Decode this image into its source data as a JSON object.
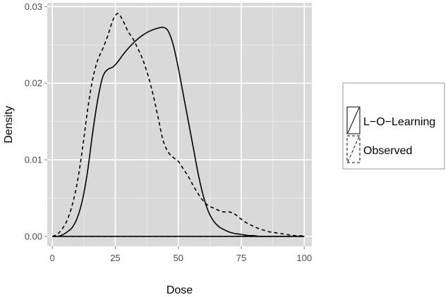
{
  "chart_data": {
    "type": "line",
    "xlabel": "Dose",
    "ylabel": "Density",
    "xlim": [
      -2,
      103
    ],
    "ylim": [
      -0.0013,
      0.0305
    ],
    "x_ticks": [
      0,
      25,
      50,
      75,
      100
    ],
    "x_tick_labels": [
      "0",
      "25",
      "50",
      "75",
      "100"
    ],
    "y_ticks": [
      0.0,
      0.01,
      0.02,
      0.03
    ],
    "y_tick_labels": [
      "0.00",
      "0.01",
      "0.02",
      "0.03"
    ],
    "grid": true,
    "legend_position": "right",
    "colors": {
      "panel_background": "#d9d9d9",
      "grid_major": "#ffffff",
      "grid_minor": "#ececec",
      "line": "#000000"
    },
    "series": [
      {
        "name": "L−O−Learning",
        "linestyle": "solid",
        "x": [
          0,
          2,
          4,
          6,
          8,
          10,
          12,
          14,
          16,
          18,
          20,
          22,
          24,
          26,
          28,
          30,
          32,
          34,
          36,
          38,
          40,
          42,
          44,
          46,
          48,
          50,
          52,
          54,
          56,
          58,
          60,
          62,
          64,
          66,
          68,
          70,
          72,
          74,
          76,
          78,
          80,
          82,
          84,
          86,
          88,
          90,
          92,
          94,
          96,
          98,
          100
        ],
        "y": [
          0.0,
          0.0,
          0.0002,
          0.0006,
          0.0012,
          0.0025,
          0.0048,
          0.0085,
          0.0135,
          0.0178,
          0.0208,
          0.0218,
          0.0221,
          0.0228,
          0.0237,
          0.0245,
          0.0252,
          0.0258,
          0.0263,
          0.0267,
          0.027,
          0.0272,
          0.0273,
          0.0268,
          0.025,
          0.022,
          0.0185,
          0.015,
          0.0115,
          0.008,
          0.0052,
          0.0032,
          0.002,
          0.0013,
          0.0009,
          0.0006,
          0.0004,
          0.0003,
          0.0002,
          0.0001,
          0.0001,
          0.0,
          0.0,
          0.0,
          0.0,
          0.0,
          0.0,
          0.0,
          0.0,
          0.0,
          0.0
        ]
      },
      {
        "name": "Observed",
        "linestyle": "dashed",
        "x": [
          0,
          2,
          4,
          6,
          8,
          10,
          12,
          14,
          16,
          18,
          20,
          22,
          24,
          26,
          28,
          30,
          32,
          34,
          36,
          38,
          40,
          42,
          44,
          46,
          48,
          50,
          52,
          54,
          56,
          58,
          60,
          62,
          64,
          66,
          68,
          70,
          72,
          74,
          76,
          78,
          80,
          82,
          84,
          86,
          88,
          90,
          92,
          94,
          96,
          98,
          100
        ],
        "y": [
          0.0,
          0.0003,
          0.001,
          0.0022,
          0.0042,
          0.0072,
          0.0115,
          0.0165,
          0.0205,
          0.023,
          0.0245,
          0.0262,
          0.0282,
          0.0291,
          0.0282,
          0.0268,
          0.0258,
          0.0245,
          0.023,
          0.021,
          0.0185,
          0.0155,
          0.0125,
          0.011,
          0.0103,
          0.0098,
          0.0088,
          0.0078,
          0.0066,
          0.0055,
          0.0046,
          0.004,
          0.0037,
          0.0034,
          0.0032,
          0.0032,
          0.003,
          0.0025,
          0.002,
          0.0016,
          0.0013,
          0.001,
          0.0008,
          0.0006,
          0.0005,
          0.0004,
          0.0003,
          0.0002,
          0.0001,
          0.0001,
          0.0
        ]
      }
    ]
  }
}
